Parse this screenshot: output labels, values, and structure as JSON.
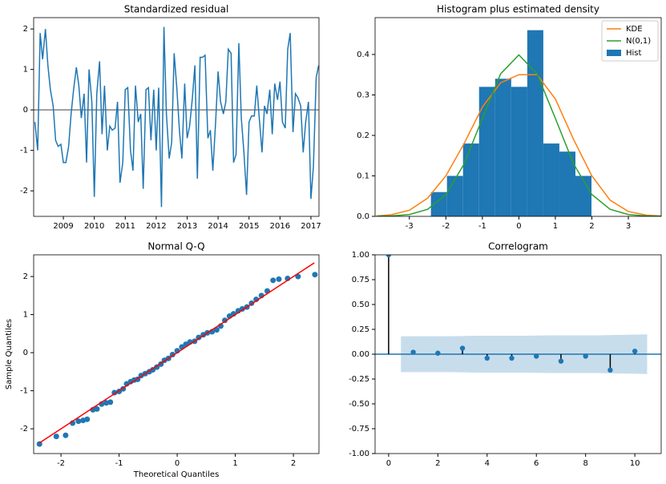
{
  "chart_data": [
    {
      "type": "line",
      "title": "Standardized residual",
      "color": "#1f77b4",
      "reference_line": 0,
      "reference_color": "#808080",
      "x": [
        2008.08,
        2008.17,
        2008.25,
        2008.33,
        2008.42,
        2008.5,
        2008.58,
        2008.67,
        2008.75,
        2008.83,
        2008.92,
        2009.0,
        2009.08,
        2009.17,
        2009.25,
        2009.33,
        2009.42,
        2009.5,
        2009.58,
        2009.67,
        2009.75,
        2009.83,
        2009.92,
        2010.0,
        2010.08,
        2010.17,
        2010.25,
        2010.33,
        2010.42,
        2010.5,
        2010.58,
        2010.67,
        2010.75,
        2010.83,
        2010.92,
        2011.0,
        2011.08,
        2011.17,
        2011.25,
        2011.33,
        2011.42,
        2011.5,
        2011.58,
        2011.67,
        2011.75,
        2011.83,
        2011.92,
        2012.0,
        2012.08,
        2012.17,
        2012.25,
        2012.33,
        2012.42,
        2012.5,
        2012.58,
        2012.67,
        2012.75,
        2012.83,
        2012.92,
        2013.0,
        2013.08,
        2013.17,
        2013.25,
        2013.33,
        2013.42,
        2013.5,
        2013.58,
        2013.67,
        2013.75,
        2013.83,
        2013.92,
        2014.0,
        2014.08,
        2014.17,
        2014.25,
        2014.33,
        2014.42,
        2014.5,
        2014.58,
        2014.67,
        2014.75,
        2014.83,
        2014.92,
        2015.0,
        2015.08,
        2015.17,
        2015.25,
        2015.33,
        2015.42,
        2015.5,
        2015.58,
        2015.67,
        2015.75,
        2015.83,
        2015.92,
        2016.0,
        2016.08,
        2016.17,
        2016.25,
        2016.33,
        2016.42,
        2016.5,
        2016.58,
        2016.67,
        2016.75,
        2016.83,
        2016.92,
        2017.0,
        2017.08,
        2017.17,
        2017.25
      ],
      "values": [
        -0.3,
        -1.0,
        1.9,
        1.25,
        2.0,
        1.1,
        0.5,
        0.1,
        -0.75,
        -0.9,
        -0.85,
        -1.3,
        -1.3,
        -0.9,
        -0.1,
        0.5,
        1.05,
        0.6,
        -0.2,
        0.4,
        -1.3,
        1.0,
        0.2,
        -2.15,
        0.4,
        1.2,
        -0.6,
        0.6,
        -1.0,
        -0.4,
        -0.5,
        -0.45,
        0.2,
        -1.8,
        -1.3,
        0.5,
        0.55,
        -1.0,
        -1.5,
        0.6,
        -0.3,
        -0.1,
        -1.95,
        0.5,
        0.55,
        -0.75,
        0.5,
        -1.0,
        0.55,
        -2.4,
        2.05,
        -0.1,
        -1.2,
        -0.8,
        1.4,
        0.5,
        -0.5,
        -1.2,
        0.65,
        -0.7,
        -0.4,
        0.3,
        1.1,
        -1.7,
        1.3,
        1.3,
        1.35,
        -0.7,
        -0.5,
        -1.5,
        -0.3,
        0.95,
        0.2,
        -0.1,
        0.2,
        1.5,
        1.4,
        -1.3,
        -1.1,
        1.65,
        -0.2,
        -1.0,
        -2.1,
        -0.3,
        -0.15,
        -0.15,
        0.6,
        -0.2,
        -1.05,
        0.1,
        -0.1,
        0.5,
        -0.6,
        0.65,
        0.25,
        0.7,
        -0.3,
        -0.45,
        1.5,
        1.9,
        -0.55,
        0.4,
        0.3,
        0.1,
        -1.05,
        -0.3,
        0.2,
        -2.2,
        -1.4,
        0.8,
        1.1
      ],
      "xlim": [
        2008.04,
        2017.26
      ],
      "xticks": [
        2009,
        2010,
        2011,
        2012,
        2013,
        2014,
        2015,
        2016,
        2017
      ],
      "ylim": [
        -2.63,
        2.28
      ],
      "yticks": [
        -2,
        -1,
        0,
        1,
        2
      ]
    },
    {
      "type": "histogram",
      "title": "Histogram plus estimated density",
      "legend": "upper right",
      "hist": {
        "name": "Hist",
        "color": "#1f77b4",
        "bins": [
          -2.41,
          -1.97,
          -1.53,
          -1.09,
          -0.65,
          -0.21,
          0.23,
          0.67,
          1.11,
          1.55,
          1.99
        ],
        "values": [
          0.06,
          0.1,
          0.18,
          0.32,
          0.34,
          0.32,
          0.46,
          0.18,
          0.16,
          0.1
        ]
      },
      "lines": [
        {
          "name": "KDE",
          "color": "#ff7f0e",
          "x": [
            -3.9,
            -3.5,
            -3,
            -2.5,
            -2,
            -1.5,
            -1,
            -0.5,
            0,
            0.5,
            1,
            1.5,
            2,
            2.5,
            3,
            3.5,
            3.9
          ],
          "values": [
            0.001,
            0.004,
            0.015,
            0.045,
            0.1,
            0.18,
            0.27,
            0.33,
            0.35,
            0.35,
            0.29,
            0.19,
            0.1,
            0.04,
            0.012,
            0.003,
            0.001
          ]
        },
        {
          "name": "N(0,1)",
          "color": "#2ca02c",
          "x": [
            -3.9,
            -3.5,
            -3,
            -2.5,
            -2,
            -1.5,
            -1,
            -0.5,
            0,
            0.5,
            1,
            1.5,
            2,
            2.5,
            3,
            3.5,
            3.9
          ],
          "values": [
            0.0002,
            0.0009,
            0.0044,
            0.0175,
            0.054,
            0.1295,
            0.242,
            0.352,
            0.399,
            0.352,
            0.242,
            0.1295,
            0.054,
            0.0175,
            0.0044,
            0.0009,
            0.0002
          ]
        }
      ],
      "xlim": [
        -3.94,
        3.9
      ],
      "xticks": [
        -3,
        -2,
        -1,
        0,
        1,
        2,
        3
      ],
      "ylim": [
        0,
        0.491
      ],
      "yticks": [
        {
          "value": 0,
          "label": "0.0"
        },
        0.1,
        0.2,
        0.3,
        0.4
      ]
    },
    {
      "type": "scatter",
      "title": "Normal Q-Q",
      "xlabel": "Theoretical Quantiles",
      "ylabel": "Sample Quantiles",
      "color": "#1f77b4",
      "reference_line": {
        "color": "#ff0000",
        "x": [
          -2.37,
          2.36
        ],
        "y": [
          -2.37,
          2.36
        ]
      },
      "x": [
        -2.37,
        -2.08,
        -1.92,
        -1.8,
        -1.7,
        -1.62,
        -1.55,
        -1.45,
        -1.38,
        -1.3,
        -1.22,
        -1.15,
        -1.08,
        -1.0,
        -0.93,
        -0.87,
        -0.8,
        -0.74,
        -0.68,
        -0.62,
        -0.55,
        -0.48,
        -0.42,
        -0.35,
        -0.28,
        -0.22,
        -0.15,
        -0.08,
        0.0,
        0.08,
        0.15,
        0.22,
        0.3,
        0.37,
        0.45,
        0.52,
        0.6,
        0.68,
        0.75,
        0.82,
        0.9,
        0.97,
        1.05,
        1.12,
        1.2,
        1.28,
        1.36,
        1.45,
        1.55,
        1.65,
        1.75,
        1.9,
        2.08,
        2.37
      ],
      "values": [
        -2.4,
        -2.2,
        -2.17,
        -1.85,
        -1.8,
        -1.78,
        -1.75,
        -1.5,
        -1.48,
        -1.35,
        -1.32,
        -1.3,
        -1.05,
        -1.02,
        -0.95,
        -0.82,
        -0.76,
        -0.72,
        -0.7,
        -0.6,
        -0.55,
        -0.5,
        -0.45,
        -0.38,
        -0.3,
        -0.2,
        -0.15,
        -0.05,
        0.05,
        0.15,
        0.22,
        0.28,
        0.3,
        0.4,
        0.47,
        0.52,
        0.55,
        0.6,
        0.7,
        0.85,
        0.96,
        1.02,
        1.1,
        1.15,
        1.2,
        1.3,
        1.4,
        1.5,
        1.62,
        1.9,
        1.93,
        1.95,
        2.0,
        2.05
      ],
      "xlim": [
        -2.47,
        2.44
      ],
      "xticks": [
        -2,
        -1,
        0,
        1,
        2
      ],
      "ylim": [
        -2.65,
        2.57
      ],
      "yticks": [
        -2,
        -1,
        0,
        1,
        2
      ]
    },
    {
      "type": "stem",
      "title": "Correlogram",
      "color": "#1f77b4",
      "stem_color": "#000000",
      "reference_line": 0,
      "x": [
        0,
        1,
        2,
        3,
        4,
        5,
        6,
        7,
        8,
        9,
        10
      ],
      "values": [
        1.0,
        0.02,
        0.01,
        0.06,
        -0.04,
        -0.04,
        -0.02,
        -0.07,
        -0.02,
        -0.16,
        0.03
      ],
      "confidence_band": {
        "color": "#1f77b4",
        "x": [
          0.5,
          1.5,
          2.5,
          3.5,
          4.5,
          5.5,
          6.5,
          7.5,
          8.5,
          9.5,
          10.5
        ],
        "upper": [
          0.18,
          0.18,
          0.18,
          0.185,
          0.185,
          0.185,
          0.19,
          0.19,
          0.19,
          0.195,
          0.2
        ],
        "lower": [
          -0.18,
          -0.18,
          -0.18,
          -0.185,
          -0.185,
          -0.185,
          -0.19,
          -0.19,
          -0.19,
          -0.195,
          -0.2
        ]
      },
      "xlim": [
        -0.55,
        11.07
      ],
      "xticks": [
        0,
        2,
        4,
        6,
        8,
        10
      ],
      "ylim": [
        -1,
        1
      ],
      "yticks": [
        {
          "value": -1,
          "label": "-1.00"
        },
        {
          "value": -0.75,
          "label": "-0.75"
        },
        {
          "value": -0.5,
          "label": "-0.50"
        },
        {
          "value": -0.25,
          "label": "-0.25"
        },
        {
          "value": 0,
          "label": "0.00"
        },
        {
          "value": 0.25,
          "label": "0.25"
        },
        {
          "value": 0.5,
          "label": "0.50"
        },
        {
          "value": 0.75,
          "label": "0.75"
        },
        {
          "value": 1,
          "label": "1.00"
        }
      ]
    }
  ]
}
